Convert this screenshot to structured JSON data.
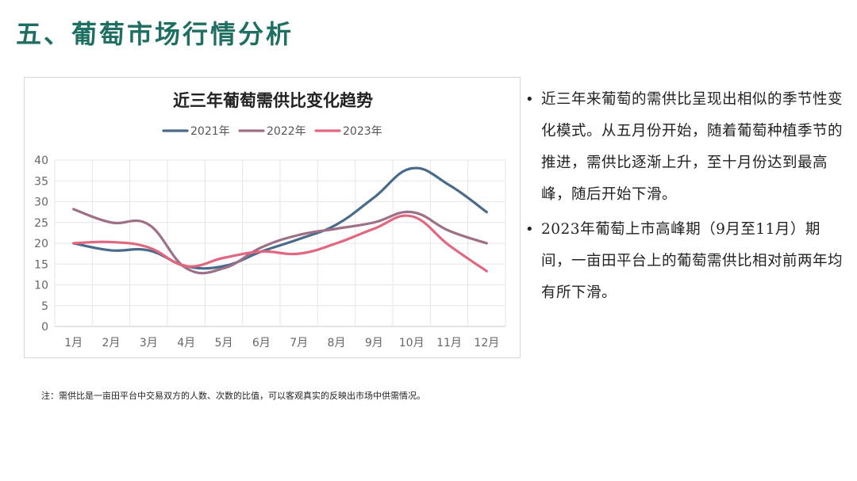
{
  "slide": {
    "title": "五、葡萄市场行情分析"
  },
  "bullets": [
    "近三年来葡萄的需供比呈现出相似的季节性变化模式。从五月份开始，随着葡萄种植季节的推进，需供比逐渐上升，至十月份达到最高峰，随后开始下滑。",
    "2023年葡萄上市高峰期（9月至11月）期间，一亩田平台上的葡萄需供比相对前两年均有所下滑。"
  ],
  "note": "注：需供比是一亩田平台中交易双方的人数、次数的比值，可以客观真实的反映出市场中供需情况。",
  "chart_data": {
    "type": "line",
    "title": "近三年葡萄需供比变化趋势",
    "xlabel": "",
    "ylabel": "",
    "categories": [
      "1月",
      "2月",
      "3月",
      "4月",
      "5月",
      "6月",
      "7月",
      "8月",
      "9月",
      "10月",
      "11月",
      "12月"
    ],
    "ylim": [
      0,
      40
    ],
    "yticks": [
      0,
      5,
      10,
      15,
      20,
      25,
      30,
      35,
      40
    ],
    "grid": true,
    "legend_position": "top",
    "series": [
      {
        "name": "2021年",
        "color": "#4a6a8a",
        "values": [
          20,
          18.3,
          18.3,
          14.5,
          14.5,
          18,
          21,
          24.5,
          31,
          38,
          34,
          27.5
        ]
      },
      {
        "name": "2022年",
        "color": "#9e7087",
        "values": [
          28.2,
          25,
          24.5,
          14,
          14,
          19,
          22,
          23.5,
          25,
          27.5,
          23,
          20
        ]
      },
      {
        "name": "2023年",
        "color": "#e0677f",
        "values": [
          20,
          20.3,
          19,
          14.5,
          16.5,
          18,
          17.5,
          20,
          23.5,
          26.5,
          19.5,
          13.3
        ]
      }
    ]
  }
}
